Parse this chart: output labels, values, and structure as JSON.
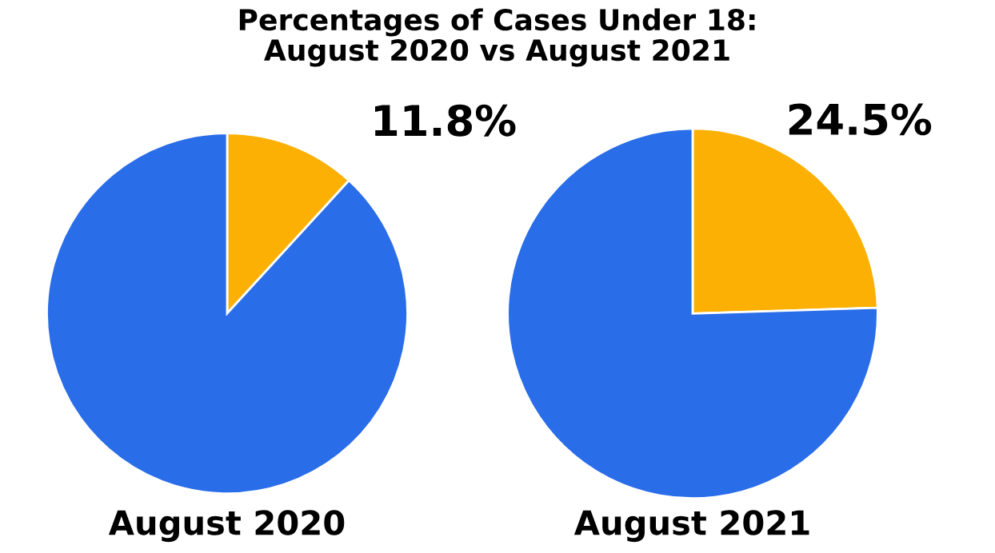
{
  "chart_data": [
    {
      "type": "pie",
      "title": "Percentages of Cases Under 18:\nAugust 2020 vs August 2021",
      "xlabel": "August 2020",
      "categories": [
        null,
        null
      ],
      "values": [
        11.8,
        88.2
      ],
      "colors": [
        "#fbb003",
        "#2a6de9"
      ],
      "value_labels": [
        "11.8%",
        null
      ]
    },
    {
      "type": "pie",
      "xlabel": "August 2021",
      "categories": [
        null,
        null
      ],
      "values": [
        24.5,
        75.5
      ],
      "colors": [
        "#fbb003",
        "#2a6de9"
      ],
      "value_labels": [
        "24.5%",
        null
      ]
    }
  ]
}
